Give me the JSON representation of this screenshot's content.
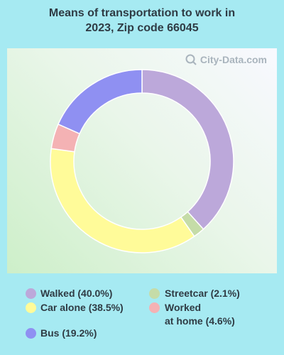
{
  "title_line1": "Means of transportation to work in",
  "title_line2": "2023, Zip code 66045",
  "watermark": "City-Data.com",
  "chart_data": {
    "type": "pie",
    "title": "Means of transportation to work in 2023, Zip code 66045",
    "series": [
      {
        "name": "Walked",
        "value": 40.0,
        "color": "#bca8da"
      },
      {
        "name": "Streetcar",
        "value": 2.1,
        "color": "#c5dca8"
      },
      {
        "name": "Car alone",
        "value": 38.5,
        "color": "#fffb99"
      },
      {
        "name": "Worked at home",
        "value": 4.6,
        "color": "#f4b2b4"
      },
      {
        "name": "Bus",
        "value": 19.2,
        "color": "#8f90f2"
      }
    ]
  },
  "legend": {
    "walked": "Walked (40.0%)",
    "streetcar": "Streetcar (2.1%)",
    "car_alone": "Car alone (38.5%)",
    "worked_home_1": "Worked",
    "worked_home_2": "at home (4.6%)",
    "bus": "Bus (19.2%)"
  }
}
